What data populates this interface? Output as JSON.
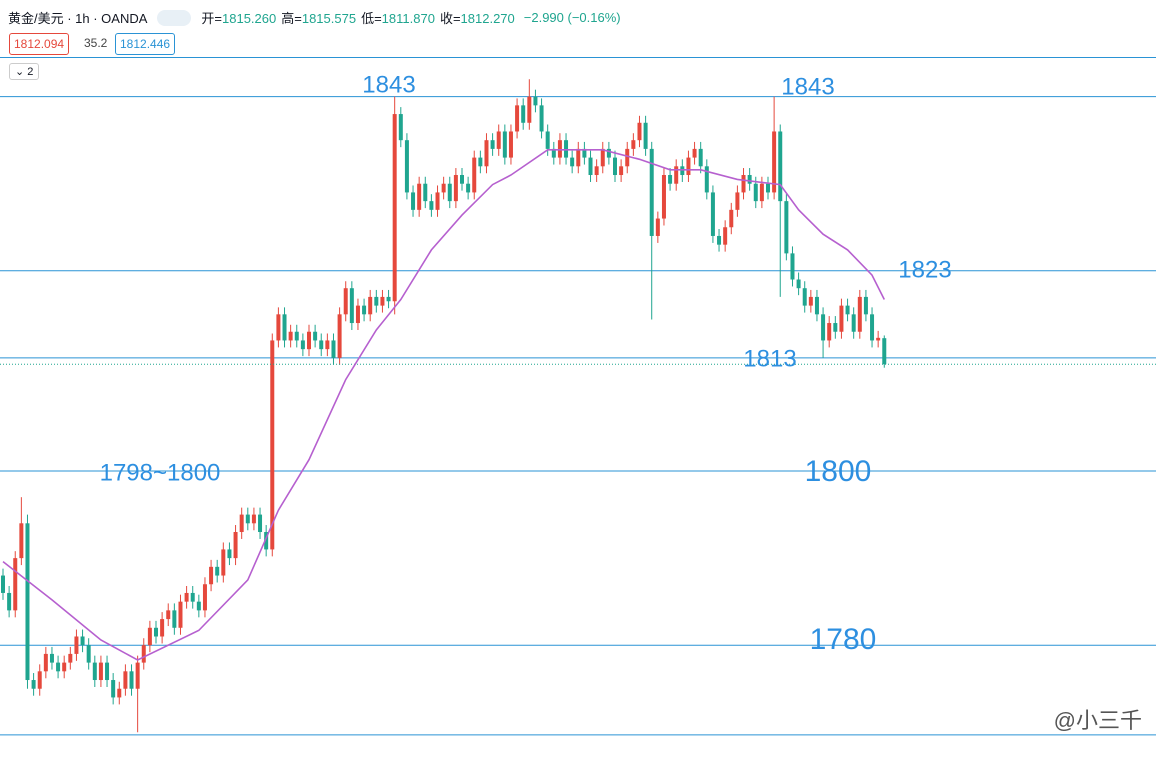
{
  "chart_data": {
    "type": "candlestick",
    "symbol": "黄金/美元 · 1h · OANDA",
    "ohlc_header": [
      {
        "label": "开=",
        "value": "1815.260"
      },
      {
        "label": "高=",
        "value": "1815.575"
      },
      {
        "label": "低=",
        "value": "1811.870"
      },
      {
        "label": "收=",
        "value": "1812.270"
      }
    ],
    "change": "−2.990 (−0.16%)",
    "price_boxes": [
      "1812.094",
      "35.2",
      "1812.446"
    ],
    "indicator_count": "2",
    "watermark": "@小三千",
    "up_color": "#e5483c",
    "down_color": "#1fa58f",
    "level_color": "#2a93d5",
    "ma_color": "#b660cf",
    "annotation_color": "#2d8fe0",
    "ylim": [
      1766.7,
      1854.1
    ],
    "levels": [
      1847.5,
      1843,
      1823,
      1813,
      1800,
      1780,
      1769.7
    ],
    "annotations": [
      "1843",
      "1843",
      "1823",
      "1813",
      "1798~1800",
      "1800",
      "1780"
    ],
    "candles": [
      [
        1788,
        1788.8,
        1785.2,
        1786
      ],
      [
        1786,
        1786.8,
        1783.2,
        1784
      ],
      [
        1784,
        1790.8,
        1783.2,
        1790
      ],
      [
        1790,
        1797,
        1789.2,
        1794
      ],
      [
        1794,
        1795,
        1775,
        1776
      ],
      [
        1776,
        1776.8,
        1774.2,
        1775
      ],
      [
        1775,
        1777.8,
        1774.2,
        1777
      ],
      [
        1777,
        1779.8,
        1776.2,
        1779
      ],
      [
        1779,
        1779.8,
        1777.2,
        1778
      ],
      [
        1778,
        1778.8,
        1776.2,
        1777
      ],
      [
        1777,
        1778.8,
        1776.2,
        1778
      ],
      [
        1778,
        1779.8,
        1777.2,
        1779
      ],
      [
        1779,
        1781.8,
        1778.2,
        1781
      ],
      [
        1781,
        1781.8,
        1779.2,
        1780
      ],
      [
        1780,
        1780.8,
        1777.2,
        1778
      ],
      [
        1778,
        1778.8,
        1775.2,
        1776
      ],
      [
        1776,
        1778.8,
        1775.2,
        1778
      ],
      [
        1778,
        1778.8,
        1775.2,
        1776
      ],
      [
        1776,
        1776.8,
        1773.2,
        1774
      ],
      [
        1774,
        1775.8,
        1773.2,
        1775
      ],
      [
        1775,
        1777.8,
        1774.2,
        1777
      ],
      [
        1777,
        1777.8,
        1774.2,
        1775
      ],
      [
        1775,
        1778.8,
        1770,
        1778
      ],
      [
        1778,
        1780.8,
        1777.2,
        1780
      ],
      [
        1780,
        1782.8,
        1779.2,
        1782
      ],
      [
        1782,
        1782.8,
        1780.2,
        1781
      ],
      [
        1781,
        1783.8,
        1780.2,
        1783
      ],
      [
        1783,
        1784.8,
        1782.2,
        1784
      ],
      [
        1784,
        1784.8,
        1781.2,
        1782
      ],
      [
        1782,
        1785.8,
        1781.2,
        1785
      ],
      [
        1785,
        1786.8,
        1784.2,
        1786
      ],
      [
        1786,
        1786.8,
        1784.2,
        1785
      ],
      [
        1785,
        1785.8,
        1783.2,
        1784
      ],
      [
        1784,
        1787.8,
        1783.2,
        1787
      ],
      [
        1787,
        1789.8,
        1786.2,
        1789
      ],
      [
        1789,
        1789.8,
        1787.2,
        1788
      ],
      [
        1788,
        1791.8,
        1787.2,
        1791
      ],
      [
        1791,
        1791.8,
        1789.2,
        1790
      ],
      [
        1790,
        1793.8,
        1789.2,
        1793
      ],
      [
        1793,
        1795.8,
        1792.2,
        1795
      ],
      [
        1795,
        1795.8,
        1793.2,
        1794
      ],
      [
        1794,
        1795.8,
        1793.2,
        1795
      ],
      [
        1795,
        1795.8,
        1792.2,
        1793
      ],
      [
        1793,
        1793.8,
        1790.2,
        1791
      ],
      [
        1791,
        1815.8,
        1790.2,
        1815
      ],
      [
        1815,
        1818.8,
        1814.2,
        1818
      ],
      [
        1818,
        1818.8,
        1814.2,
        1815
      ],
      [
        1815,
        1816.8,
        1814.2,
        1816
      ],
      [
        1816,
        1816.8,
        1814.2,
        1815
      ],
      [
        1815,
        1815.8,
        1813.2,
        1814
      ],
      [
        1814,
        1816.8,
        1813.2,
        1816
      ],
      [
        1816,
        1816.8,
        1814.2,
        1815
      ],
      [
        1815,
        1815.8,
        1813.2,
        1814
      ],
      [
        1814,
        1815.8,
        1813.2,
        1815
      ],
      [
        1815,
        1815.8,
        1812.2,
        1813
      ],
      [
        1813,
        1818.8,
        1812.2,
        1818
      ],
      [
        1818,
        1821.8,
        1817.2,
        1821
      ],
      [
        1821,
        1821.8,
        1816.2,
        1817
      ],
      [
        1817,
        1819.8,
        1816.2,
        1819
      ],
      [
        1819,
        1819.8,
        1817.2,
        1818
      ],
      [
        1818,
        1820.8,
        1817.2,
        1820
      ],
      [
        1820,
        1820.8,
        1818.2,
        1819
      ],
      [
        1819,
        1820.8,
        1818.2,
        1820
      ],
      [
        1820,
        1820.8,
        1818.7,
        1819.5
      ],
      [
        1819.5,
        1843,
        1818,
        1841
      ],
      [
        1841,
        1841.8,
        1837.2,
        1838
      ],
      [
        1838,
        1838.8,
        1831.2,
        1832
      ],
      [
        1832,
        1832.8,
        1829.2,
        1830
      ],
      [
        1830,
        1833.8,
        1829.2,
        1833
      ],
      [
        1833,
        1833.8,
        1830.2,
        1831
      ],
      [
        1831,
        1831.8,
        1829.2,
        1830
      ],
      [
        1830,
        1832.8,
        1829.2,
        1832
      ],
      [
        1832,
        1833.8,
        1831.2,
        1833
      ],
      [
        1833,
        1833.8,
        1830.2,
        1831
      ],
      [
        1831,
        1834.8,
        1830.2,
        1834
      ],
      [
        1834,
        1834.8,
        1832.2,
        1833
      ],
      [
        1833,
        1833.8,
        1831.2,
        1832
      ],
      [
        1832,
        1836.8,
        1831.2,
        1836
      ],
      [
        1836,
        1836.8,
        1834.2,
        1835
      ],
      [
        1835,
        1838.8,
        1834.2,
        1838
      ],
      [
        1838,
        1838.8,
        1836.2,
        1837
      ],
      [
        1837,
        1839.8,
        1836.2,
        1839
      ],
      [
        1839,
        1839.8,
        1835.2,
        1836
      ],
      [
        1836,
        1839.8,
        1835.2,
        1839
      ],
      [
        1839,
        1842.8,
        1838.2,
        1842
      ],
      [
        1842,
        1842.8,
        1839.2,
        1840
      ],
      [
        1840,
        1845,
        1839.2,
        1843
      ],
      [
        1843,
        1843.8,
        1841.2,
        1842
      ],
      [
        1842,
        1842.8,
        1838.2,
        1839
      ],
      [
        1839,
        1839.8,
        1836.2,
        1837
      ],
      [
        1837,
        1837.8,
        1835.2,
        1836
      ],
      [
        1836,
        1838.8,
        1835.2,
        1838
      ],
      [
        1838,
        1838.8,
        1835.2,
        1836
      ],
      [
        1836,
        1836.8,
        1834.2,
        1835
      ],
      [
        1835,
        1837.8,
        1834.2,
        1837
      ],
      [
        1837,
        1837.8,
        1835.2,
        1836
      ],
      [
        1836,
        1836.8,
        1833.2,
        1834
      ],
      [
        1834,
        1835.8,
        1833.2,
        1835
      ],
      [
        1835,
        1837.8,
        1834.2,
        1837
      ],
      [
        1837,
        1837.8,
        1835.2,
        1836
      ],
      [
        1836,
        1836.8,
        1833.2,
        1834
      ],
      [
        1834,
        1835.8,
        1833.2,
        1835
      ],
      [
        1835,
        1837.8,
        1834.2,
        1837
      ],
      [
        1837,
        1838.8,
        1836.2,
        1838
      ],
      [
        1838,
        1840.8,
        1837.2,
        1840
      ],
      [
        1840,
        1840.8,
        1836.2,
        1837
      ],
      [
        1837,
        1837.8,
        1817.4,
        1827
      ],
      [
        1827,
        1829.8,
        1826.2,
        1829
      ],
      [
        1829,
        1834.8,
        1828.2,
        1834
      ],
      [
        1834,
        1834.8,
        1832.2,
        1833
      ],
      [
        1833,
        1835.8,
        1832.2,
        1835
      ],
      [
        1835,
        1835.8,
        1833.2,
        1834
      ],
      [
        1834,
        1836.8,
        1833.2,
        1836
      ],
      [
        1836,
        1837.8,
        1835.2,
        1837
      ],
      [
        1837,
        1837.8,
        1834.2,
        1835
      ],
      [
        1835,
        1835.8,
        1831.2,
        1832
      ],
      [
        1832,
        1832.8,
        1826.2,
        1827
      ],
      [
        1827,
        1827.8,
        1825.2,
        1826
      ],
      [
        1826,
        1828.8,
        1825.2,
        1828
      ],
      [
        1828,
        1830.8,
        1827.2,
        1830
      ],
      [
        1830,
        1832.8,
        1829.2,
        1832
      ],
      [
        1832,
        1834.8,
        1831.2,
        1834
      ],
      [
        1834,
        1834.8,
        1832.2,
        1833
      ],
      [
        1833,
        1833.8,
        1830.2,
        1831
      ],
      [
        1831,
        1833.8,
        1830.2,
        1833
      ],
      [
        1833,
        1833.8,
        1831.2,
        1832
      ],
      [
        1832,
        1843,
        1831.2,
        1839
      ],
      [
        1839,
        1839.8,
        1820,
        1831
      ],
      [
        1831,
        1831.8,
        1824.2,
        1825
      ],
      [
        1825,
        1825.8,
        1821.2,
        1822
      ],
      [
        1822,
        1822.8,
        1820.2,
        1821
      ],
      [
        1821,
        1821.8,
        1818.2,
        1819
      ],
      [
        1819,
        1820.8,
        1818.2,
        1820
      ],
      [
        1820,
        1820.8,
        1817.2,
        1818
      ],
      [
        1818,
        1818.8,
        1813,
        1815
      ],
      [
        1815,
        1817.8,
        1814.2,
        1817
      ],
      [
        1817,
        1817.8,
        1815.2,
        1816
      ],
      [
        1816,
        1819.8,
        1815.2,
        1819
      ],
      [
        1819,
        1819.8,
        1817.2,
        1818
      ],
      [
        1818,
        1818.8,
        1815.2,
        1816
      ],
      [
        1816,
        1820.8,
        1815.2,
        1820
      ],
      [
        1820,
        1820.8,
        1817.2,
        1818
      ],
      [
        1818,
        1818.8,
        1814.2,
        1815
      ],
      [
        1815,
        1816.1,
        1814.2,
        1815.3
      ],
      [
        1815.26,
        1815.575,
        1811.87,
        1812.27
      ]
    ],
    "ma": {
      "x": [
        0,
        8,
        16,
        22,
        32,
        40,
        45,
        50,
        56,
        61,
        65,
        70,
        75,
        80,
        83,
        89,
        98,
        104,
        109,
        114,
        120,
        127,
        130,
        134,
        138,
        142,
        144
      ],
      "values": [
        1789.6,
        1785.2,
        1780.6,
        1778.3,
        1781.7,
        1787.5,
        1795.5,
        1801.3,
        1810.5,
        1816.2,
        1819.7,
        1825.4,
        1829.4,
        1832.9,
        1834.0,
        1836.9,
        1836.9,
        1835.8,
        1834.6,
        1834.6,
        1833.5,
        1832.9,
        1830.0,
        1827.2,
        1825.4,
        1822.5,
        1819.7
      ]
    }
  }
}
